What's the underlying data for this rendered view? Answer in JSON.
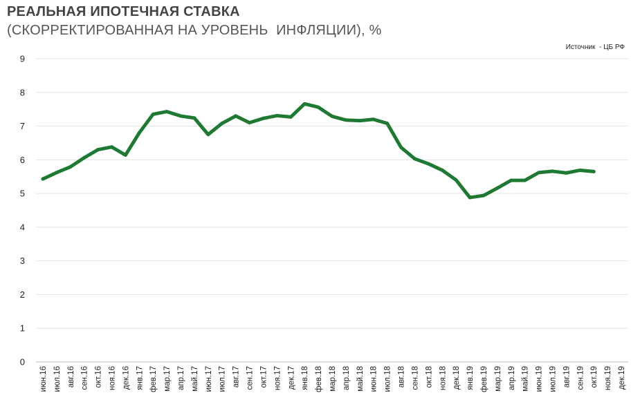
{
  "chart_data": {
    "type": "line",
    "title": "РЕАЛЬНАЯ ИПОТЕЧНАЯ СТАВКА",
    "subtitle": "(СКОРРЕКТИРОВАННАЯ НА УРОВЕНЬ  ИНФЛЯЦИИ), %",
    "source": "Источник  - ЦБ РФ",
    "xlabel": "",
    "ylabel": "",
    "ylim": [
      0,
      9
    ],
    "yticks": [
      0,
      1,
      2,
      3,
      4,
      5,
      6,
      7,
      8,
      9
    ],
    "grid": true,
    "legend": "none",
    "line_color": "#1e7a33",
    "categories": [
      "июн.16",
      "июл.16",
      "авг.16",
      "сен.16",
      "окт.16",
      "ноя.16",
      "дек.16",
      "янв.17",
      "фев.17",
      "мар.17",
      "апр.17",
      "май.17",
      "июн.17",
      "июл.17",
      "авг.17",
      "сен.17",
      "окт.17",
      "ноя.17",
      "дек.17",
      "янв.18",
      "фев.18",
      "мар.18",
      "апр.18",
      "май.18",
      "июн.18",
      "июл.18",
      "авг.18",
      "сен.18",
      "окт.18",
      "ноя.18",
      "дек.18",
      "янв.19",
      "фев.19",
      "мар.19",
      "апр.19",
      "май.19",
      "июн.19",
      "июл.19",
      "авг.19",
      "сен.19",
      "окт.19",
      "ноя.19",
      "дек.19"
    ],
    "series": [
      {
        "values": [
          5.43,
          5.62,
          5.79,
          6.06,
          6.3,
          6.38,
          6.14,
          6.8,
          7.35,
          7.43,
          7.3,
          7.24,
          6.75,
          7.08,
          7.3,
          7.1,
          7.23,
          7.31,
          7.27,
          7.66,
          7.56,
          7.29,
          7.18,
          7.16,
          7.2,
          7.08,
          6.37,
          6.03,
          5.88,
          5.69,
          5.4,
          4.88,
          4.94,
          5.16,
          5.39,
          5.39,
          5.62,
          5.66,
          5.61,
          5.69,
          5.65,
          null,
          null
        ]
      }
    ]
  }
}
